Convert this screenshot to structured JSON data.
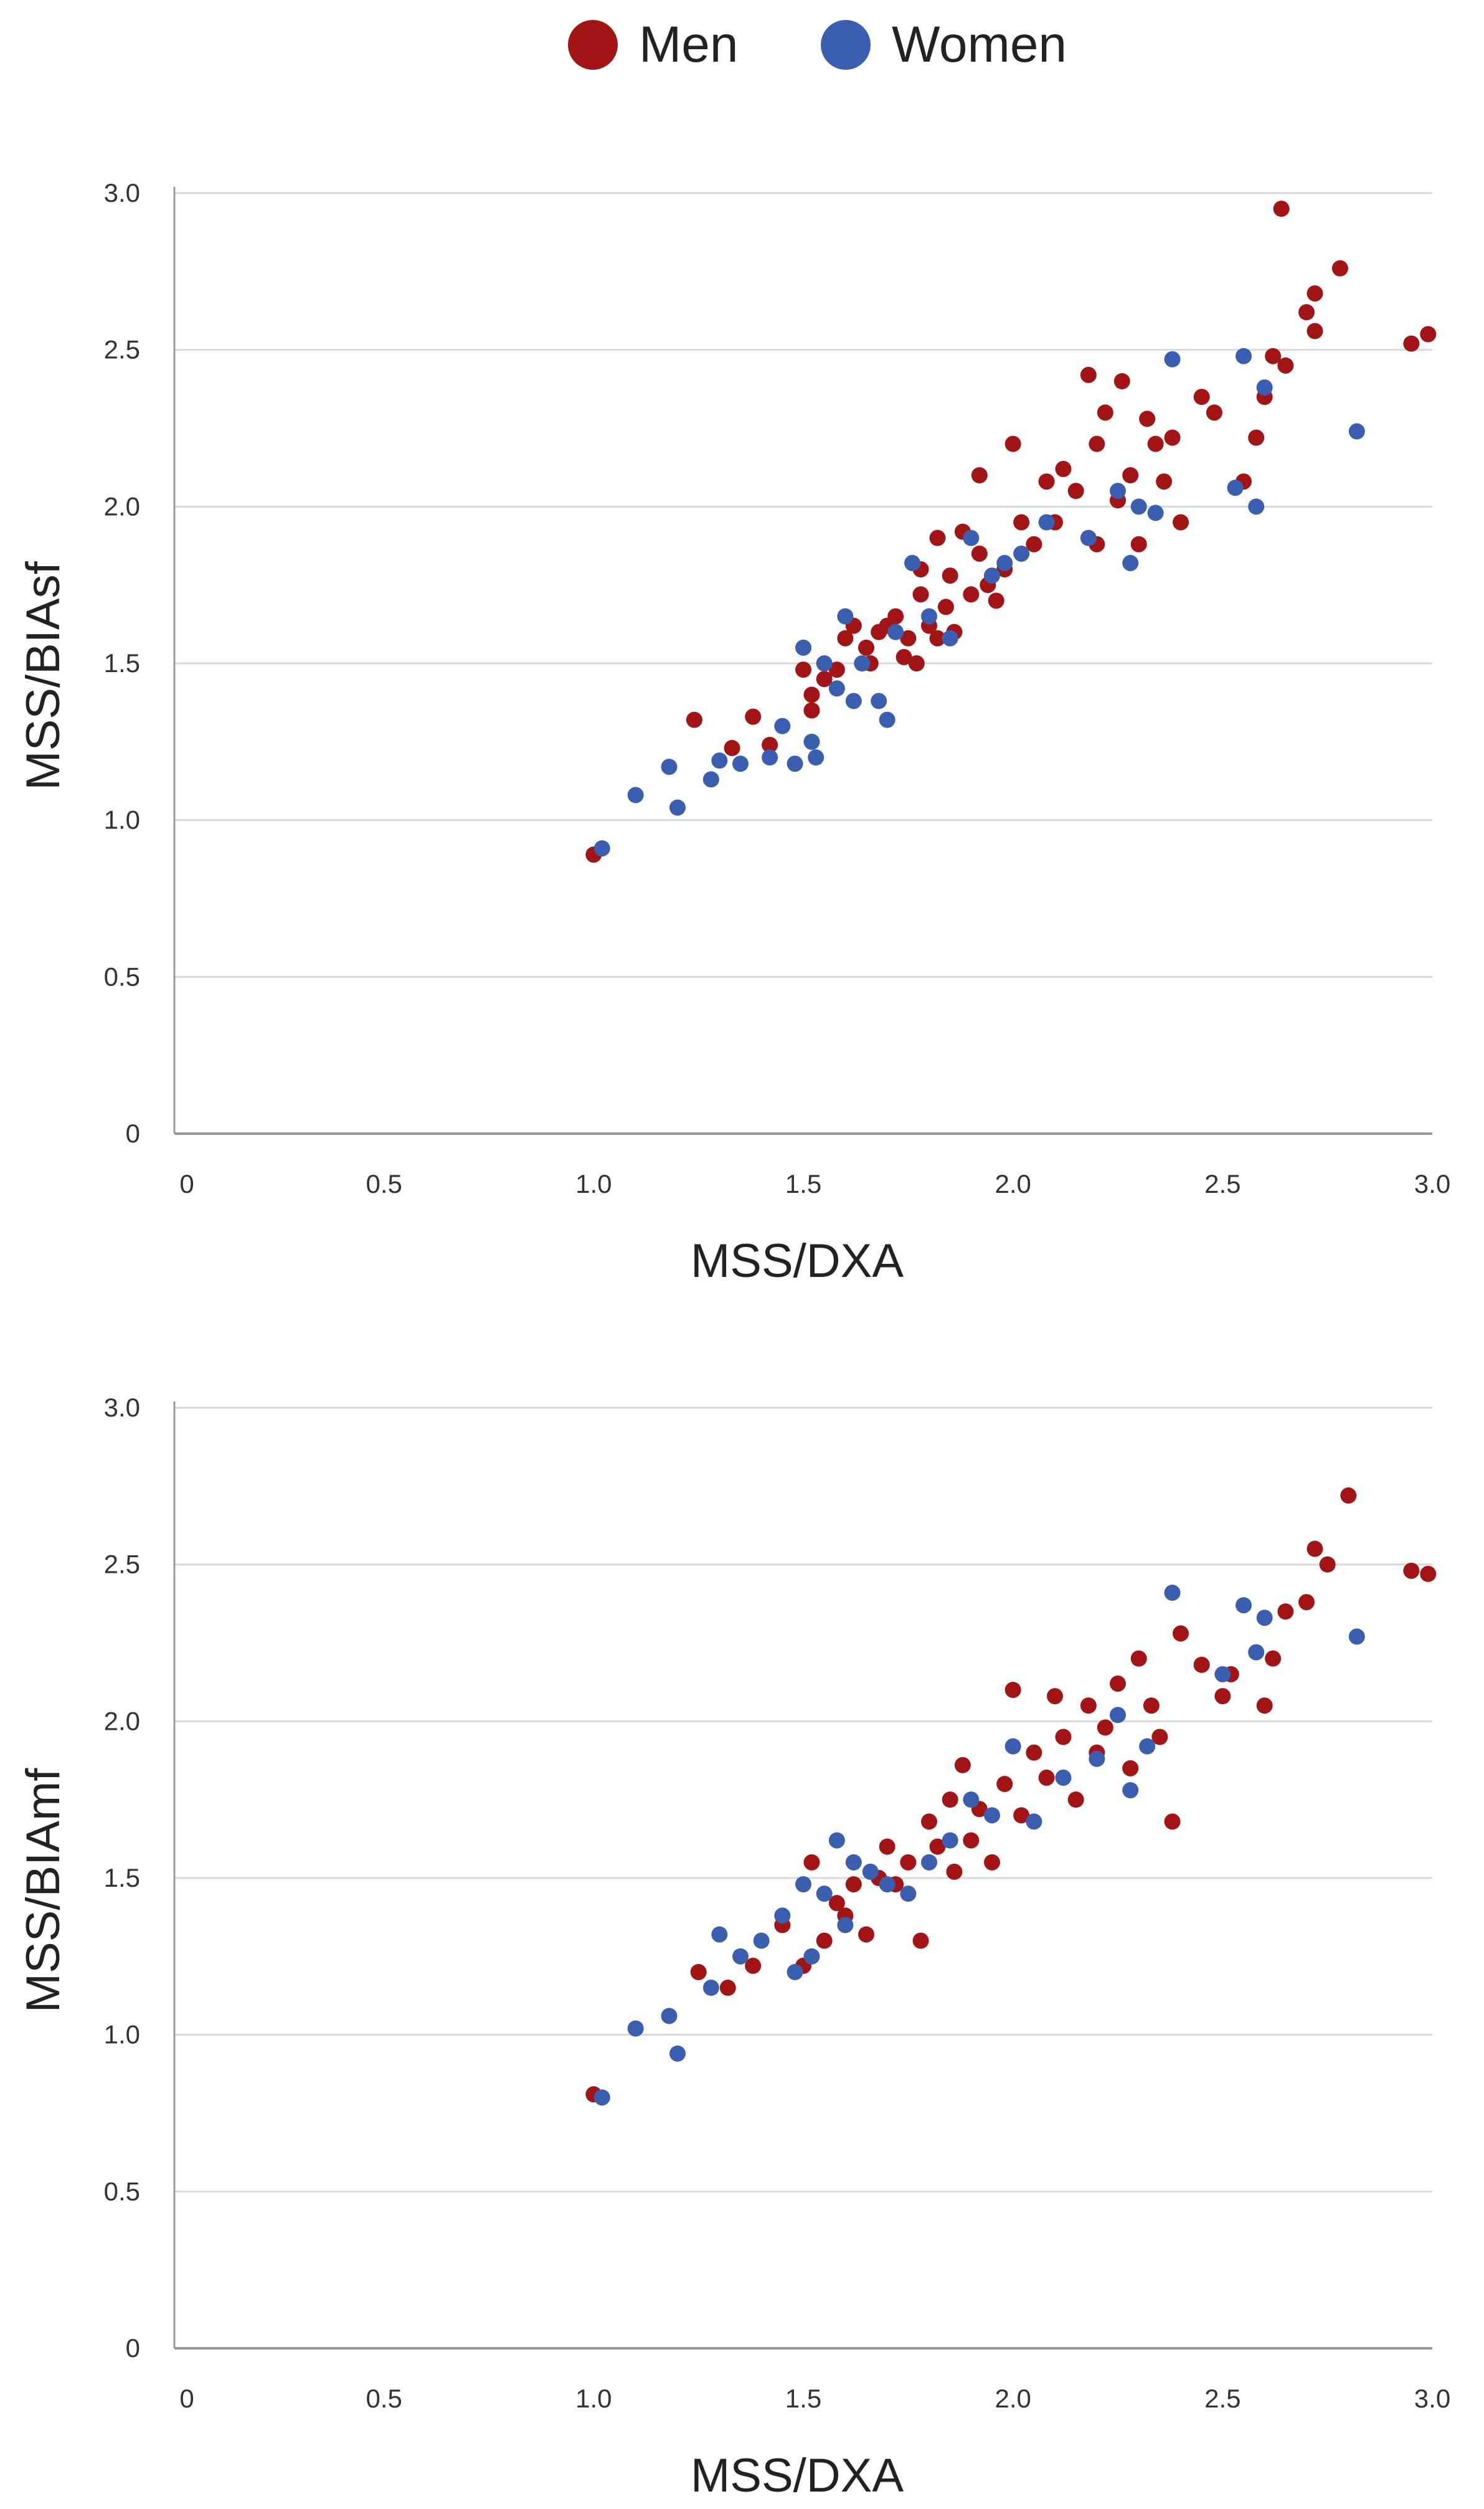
{
  "legend": {
    "men_label": "Men",
    "women_label": "Women"
  },
  "colors": {
    "men": "#a31515",
    "women": "#3a5fb0",
    "grid": "#d9d9d9",
    "axis": "#9a9a9a"
  },
  "chart_data": [
    {
      "type": "scatter",
      "title": "",
      "xlabel": "MSS/DXA",
      "ylabel": "MSS/BIAsf",
      "xlim": [
        0,
        3.0
      ],
      "ylim": [
        0,
        3.0
      ],
      "x_ticks": [
        0,
        0.5,
        1.0,
        1.5,
        2.0,
        2.5,
        3.0
      ],
      "x_tick_labels": [
        "0",
        "0.5",
        "1.0",
        "1.5",
        "2.0",
        "2.5",
        "3.0"
      ],
      "y_ticks": [
        0,
        0.5,
        1.0,
        1.5,
        2.0,
        2.5,
        3.0
      ],
      "y_tick_labels": [
        "0",
        "0.5",
        "1.0",
        "1.5",
        "2.0",
        "2.5",
        "3.0"
      ],
      "grid": true,
      "series": [
        {
          "name": "Men",
          "points": [
            [
              1.0,
              0.89
            ],
            [
              1.24,
              1.32
            ],
            [
              1.33,
              1.23
            ],
            [
              1.38,
              1.33
            ],
            [
              1.42,
              1.24
            ],
            [
              1.52,
              1.35
            ],
            [
              1.52,
              1.4
            ],
            [
              1.5,
              1.48
            ],
            [
              1.55,
              1.45
            ],
            [
              1.58,
              1.48
            ],
            [
              1.6,
              1.58
            ],
            [
              1.62,
              1.62
            ],
            [
              1.65,
              1.55
            ],
            [
              1.66,
              1.5
            ],
            [
              1.68,
              1.6
            ],
            [
              1.7,
              1.62
            ],
            [
              1.72,
              1.65
            ],
            [
              1.74,
              1.52
            ],
            [
              1.75,
              1.58
            ],
            [
              1.77,
              1.5
            ],
            [
              1.78,
              1.72
            ],
            [
              1.78,
              1.8
            ],
            [
              1.8,
              1.62
            ],
            [
              1.82,
              1.58
            ],
            [
              1.82,
              1.9
            ],
            [
              1.84,
              1.68
            ],
            [
              1.85,
              1.78
            ],
            [
              1.86,
              1.6
            ],
            [
              1.88,
              1.92
            ],
            [
              1.9,
              1.72
            ],
            [
              1.92,
              1.85
            ],
            [
              1.92,
              2.1
            ],
            [
              1.94,
              1.75
            ],
            [
              1.96,
              1.7
            ],
            [
              1.98,
              1.8
            ],
            [
              2.0,
              2.2
            ],
            [
              2.02,
              1.95
            ],
            [
              2.05,
              1.88
            ],
            [
              2.08,
              2.08
            ],
            [
              2.1,
              1.95
            ],
            [
              2.12,
              2.12
            ],
            [
              2.15,
              2.05
            ],
            [
              2.18,
              2.42
            ],
            [
              2.2,
              1.88
            ],
            [
              2.2,
              2.2
            ],
            [
              2.22,
              2.3
            ],
            [
              2.25,
              2.02
            ],
            [
              2.26,
              2.4
            ],
            [
              2.28,
              2.1
            ],
            [
              2.3,
              1.88
            ],
            [
              2.32,
              2.28
            ],
            [
              2.34,
              2.2
            ],
            [
              2.36,
              2.08
            ],
            [
              2.38,
              2.22
            ],
            [
              2.4,
              1.95
            ],
            [
              2.45,
              2.35
            ],
            [
              2.48,
              2.3
            ],
            [
              2.55,
              2.08
            ],
            [
              2.58,
              2.22
            ],
            [
              2.6,
              2.35
            ],
            [
              2.62,
              2.48
            ],
            [
              2.64,
              2.95
            ],
            [
              2.65,
              2.45
            ],
            [
              2.7,
              2.62
            ],
            [
              2.72,
              2.68
            ],
            [
              2.72,
              2.56
            ],
            [
              2.78,
              2.76
            ],
            [
              2.95,
              2.52
            ],
            [
              2.99,
              2.55
            ]
          ]
        },
        {
          "name": "Women",
          "points": [
            [
              1.02,
              0.91
            ],
            [
              1.1,
              1.08
            ],
            [
              1.18,
              1.17
            ],
            [
              1.2,
              1.04
            ],
            [
              1.28,
              1.13
            ],
            [
              1.3,
              1.19
            ],
            [
              1.35,
              1.18
            ],
            [
              1.42,
              1.2
            ],
            [
              1.45,
              1.3
            ],
            [
              1.48,
              1.18
            ],
            [
              1.5,
              1.55
            ],
            [
              1.52,
              1.25
            ],
            [
              1.53,
              1.2
            ],
            [
              1.55,
              1.5
            ],
            [
              1.58,
              1.42
            ],
            [
              1.6,
              1.65
            ],
            [
              1.62,
              1.38
            ],
            [
              1.64,
              1.5
            ],
            [
              1.68,
              1.38
            ],
            [
              1.7,
              1.32
            ],
            [
              1.72,
              1.6
            ],
            [
              1.76,
              1.82
            ],
            [
              1.8,
              1.65
            ],
            [
              1.85,
              1.58
            ],
            [
              1.9,
              1.9
            ],
            [
              1.95,
              1.78
            ],
            [
              1.98,
              1.82
            ],
            [
              2.02,
              1.85
            ],
            [
              2.08,
              1.95
            ],
            [
              2.18,
              1.9
            ],
            [
              2.25,
              2.05
            ],
            [
              2.28,
              1.82
            ],
            [
              2.3,
              2.0
            ],
            [
              2.34,
              1.98
            ],
            [
              2.38,
              2.47
            ],
            [
              2.53,
              2.06
            ],
            [
              2.55,
              2.48
            ],
            [
              2.58,
              2.0
            ],
            [
              2.6,
              2.38
            ],
            [
              2.82,
              2.24
            ]
          ]
        }
      ]
    },
    {
      "type": "scatter",
      "title": "",
      "xlabel": "MSS/DXA",
      "ylabel": "MSS/BIAmf",
      "xlim": [
        0,
        3.0
      ],
      "ylim": [
        0,
        3.0
      ],
      "x_ticks": [
        0,
        0.5,
        1.0,
        1.5,
        2.0,
        2.5,
        3.0
      ],
      "x_tick_labels": [
        "0",
        "0.5",
        "1.0",
        "1.5",
        "2.0",
        "2.5",
        "3.0"
      ],
      "y_ticks": [
        0,
        0.5,
        1.0,
        1.5,
        2.0,
        2.5,
        3.0
      ],
      "y_tick_labels": [
        "0",
        "0.5",
        "1.0",
        "1.5",
        "2.0",
        "2.5",
        "3.0"
      ],
      "grid": true,
      "series": [
        {
          "name": "Men",
          "points": [
            [
              1.0,
              0.81
            ],
            [
              1.25,
              1.2
            ],
            [
              1.32,
              1.15
            ],
            [
              1.38,
              1.22
            ],
            [
              1.45,
              1.35
            ],
            [
              1.5,
              1.22
            ],
            [
              1.52,
              1.55
            ],
            [
              1.55,
              1.3
            ],
            [
              1.58,
              1.42
            ],
            [
              1.6,
              1.38
            ],
            [
              1.62,
              1.48
            ],
            [
              1.65,
              1.32
            ],
            [
              1.68,
              1.5
            ],
            [
              1.7,
              1.6
            ],
            [
              1.72,
              1.48
            ],
            [
              1.75,
              1.55
            ],
            [
              1.78,
              1.3
            ],
            [
              1.8,
              1.68
            ],
            [
              1.82,
              1.6
            ],
            [
              1.85,
              1.75
            ],
            [
              1.86,
              1.52
            ],
            [
              1.88,
              1.86
            ],
            [
              1.9,
              1.62
            ],
            [
              1.92,
              1.72
            ],
            [
              1.95,
              1.55
            ],
            [
              1.98,
              1.8
            ],
            [
              2.0,
              2.1
            ],
            [
              2.02,
              1.7
            ],
            [
              2.05,
              1.9
            ],
            [
              2.08,
              1.82
            ],
            [
              2.1,
              2.08
            ],
            [
              2.12,
              1.95
            ],
            [
              2.15,
              1.75
            ],
            [
              2.18,
              2.05
            ],
            [
              2.2,
              1.9
            ],
            [
              2.22,
              1.98
            ],
            [
              2.25,
              2.12
            ],
            [
              2.28,
              1.85
            ],
            [
              2.3,
              2.2
            ],
            [
              2.33,
              2.05
            ],
            [
              2.35,
              1.95
            ],
            [
              2.38,
              1.68
            ],
            [
              2.4,
              2.28
            ],
            [
              2.45,
              2.18
            ],
            [
              2.5,
              2.08
            ],
            [
              2.52,
              2.15
            ],
            [
              2.6,
              2.05
            ],
            [
              2.62,
              2.2
            ],
            [
              2.65,
              2.35
            ],
            [
              2.7,
              2.38
            ],
            [
              2.72,
              2.55
            ],
            [
              2.75,
              2.5
            ],
            [
              2.8,
              2.72
            ],
            [
              2.95,
              2.48
            ],
            [
              2.99,
              2.47
            ]
          ]
        },
        {
          "name": "Women",
          "points": [
            [
              1.02,
              0.8
            ],
            [
              1.1,
              1.02
            ],
            [
              1.18,
              1.06
            ],
            [
              1.2,
              0.94
            ],
            [
              1.28,
              1.15
            ],
            [
              1.3,
              1.32
            ],
            [
              1.35,
              1.25
            ],
            [
              1.4,
              1.3
            ],
            [
              1.45,
              1.38
            ],
            [
              1.48,
              1.2
            ],
            [
              1.5,
              1.48
            ],
            [
              1.52,
              1.25
            ],
            [
              1.55,
              1.45
            ],
            [
              1.58,
              1.62
            ],
            [
              1.6,
              1.35
            ],
            [
              1.62,
              1.55
            ],
            [
              1.66,
              1.52
            ],
            [
              1.7,
              1.48
            ],
            [
              1.75,
              1.45
            ],
            [
              1.8,
              1.55
            ],
            [
              1.85,
              1.62
            ],
            [
              1.9,
              1.75
            ],
            [
              1.95,
              1.7
            ],
            [
              2.0,
              1.92
            ],
            [
              2.05,
              1.68
            ],
            [
              2.12,
              1.82
            ],
            [
              2.2,
              1.88
            ],
            [
              2.25,
              2.02
            ],
            [
              2.28,
              1.78
            ],
            [
              2.32,
              1.92
            ],
            [
              2.38,
              2.41
            ],
            [
              2.5,
              2.15
            ],
            [
              2.55,
              2.37
            ],
            [
              2.58,
              2.22
            ],
            [
              2.6,
              2.33
            ],
            [
              2.82,
              2.27
            ]
          ]
        }
      ]
    }
  ]
}
